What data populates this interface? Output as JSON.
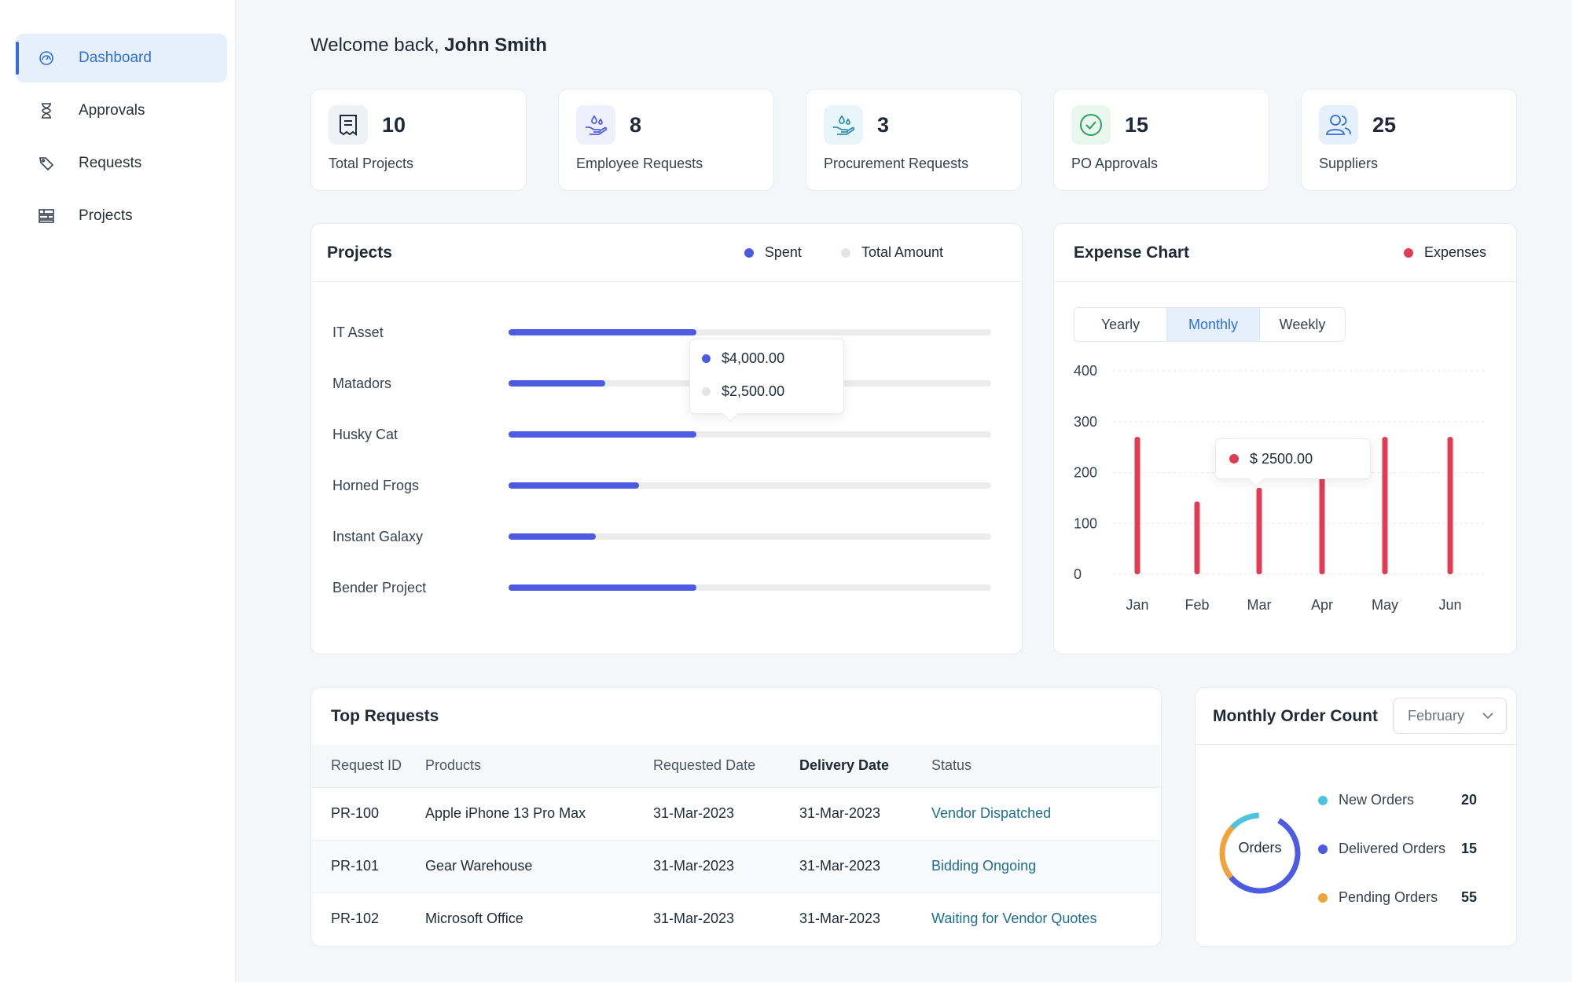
{
  "sidebar": {
    "items": [
      {
        "label": "Dashboard",
        "icon": "dashboard-icon",
        "active": true
      },
      {
        "label": "Approvals",
        "icon": "hourglass-icon",
        "active": false
      },
      {
        "label": "Requests",
        "icon": "tag-icon",
        "active": false
      },
      {
        "label": "Projects",
        "icon": "projects-icon",
        "active": false
      }
    ]
  },
  "welcome": {
    "prefix": "Welcome back, ",
    "name": "John Smith"
  },
  "stats": [
    {
      "value": "10",
      "label": "Total Projects",
      "icon": "document-icon"
    },
    {
      "value": "8",
      "label": "Employee Requests",
      "icon": "hand-drops-icon"
    },
    {
      "value": "3",
      "label": "Procurement Requests",
      "icon": "hand-drops-icon"
    },
    {
      "value": "15",
      "label": "PO Approvals",
      "icon": "check-circle-icon"
    },
    {
      "value": "25",
      "label": "Suppliers",
      "icon": "users-icon"
    }
  ],
  "projects": {
    "title": "Projects",
    "legend": {
      "spent": "Spent",
      "total": "Total Amount"
    },
    "colors": {
      "spent": "#4d5be3",
      "total": "#ececec"
    },
    "rows": [
      {
        "name": "IT Asset",
        "spent_fraction": 0.39
      },
      {
        "name": "Matadors",
        "spent_fraction": 0.2
      },
      {
        "name": "Husky Cat",
        "spent_fraction": 0.39
      },
      {
        "name": "Horned Frogs",
        "spent_fraction": 0.27
      },
      {
        "name": "Instant Galaxy",
        "spent_fraction": 0.18
      },
      {
        "name": "Bender Project",
        "spent_fraction": 0.39
      }
    ],
    "tooltip": {
      "spent": "$4,000.00",
      "total": "$2,500.00"
    }
  },
  "expense": {
    "title": "Expense Chart",
    "legend": "Expenses",
    "tabs": [
      "Yearly",
      "Monthly",
      "Weekly"
    ],
    "active_tab": "Monthly",
    "tooltip": "$ 2500.00",
    "color": "#e03c55"
  },
  "chart_data": {
    "type": "bar",
    "title": "Expense Chart",
    "categories": [
      "Jan",
      "Feb",
      "Mar",
      "Apr",
      "May",
      "Jun"
    ],
    "series": [
      {
        "name": "Expenses",
        "values": [
          270,
          143,
          170,
          205,
          270,
          270
        ]
      }
    ],
    "yticks": [
      "0",
      "100",
      "200",
      "300",
      "400"
    ],
    "ylim": [
      0,
      400
    ],
    "xlabel": "",
    "ylabel": ""
  },
  "requests": {
    "title": "Top Requests",
    "columns": [
      "Request ID",
      "Products",
      "Requested Date",
      "Delivery Date",
      "Status"
    ],
    "rows": [
      {
        "id": "PR-100",
        "product": "Apple iPhone 13 Pro Max",
        "requested": "31-Mar-2023",
        "delivery": "31-Mar-2023",
        "status": "Vendor Dispatched"
      },
      {
        "id": "PR-101",
        "product": "Gear Warehouse",
        "requested": "31-Mar-2023",
        "delivery": "31-Mar-2023",
        "status": "Bidding Ongoing"
      },
      {
        "id": "PR-102",
        "product": "Microsoft Office",
        "requested": "31-Mar-2023",
        "delivery": "31-Mar-2023",
        "status": "Waiting for Vendor Quotes"
      }
    ]
  },
  "orders": {
    "title": "Monthly Order Count",
    "month": "February",
    "center_label": "Orders",
    "items": [
      {
        "label": "New Orders",
        "value": "20",
        "color": "#4ec3e0"
      },
      {
        "label": "Delivered Orders",
        "value": "15",
        "color": "#4d5be3"
      },
      {
        "label": "Pending Orders",
        "value": "55",
        "color": "#f2a23a"
      }
    ]
  }
}
